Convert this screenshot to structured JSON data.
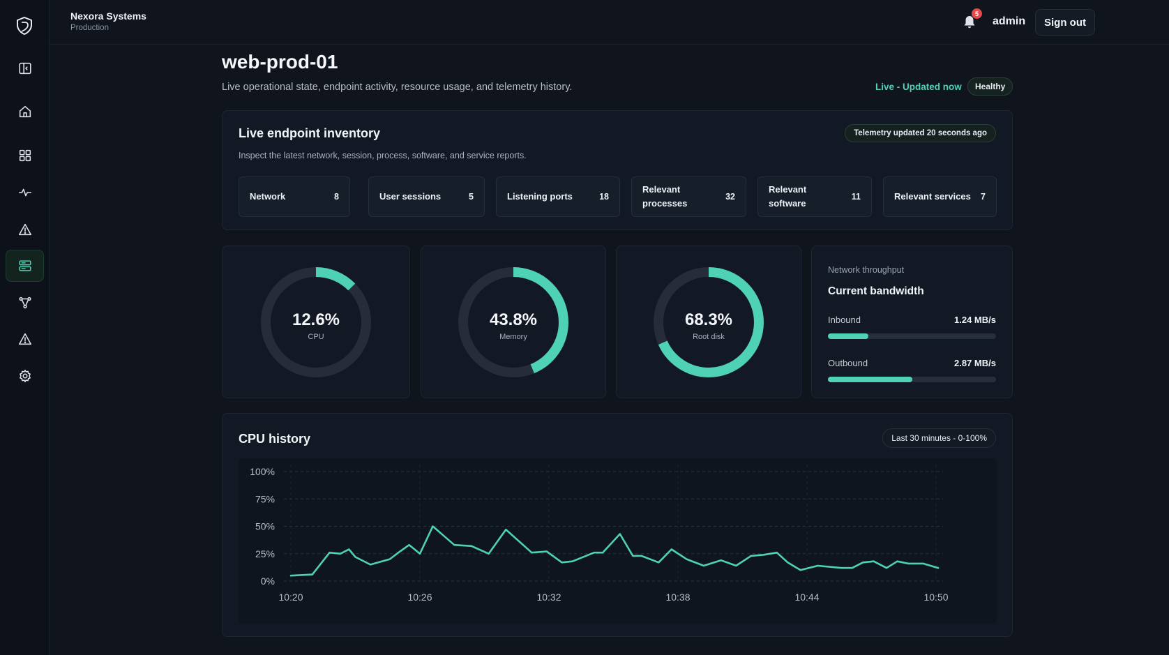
{
  "org": {
    "name": "Nexora Systems",
    "env": "Production"
  },
  "topbar": {
    "notification_count": "5",
    "user": "admin",
    "signout_label": "Sign out"
  },
  "sidebar": {
    "items": [
      {
        "icon": "panel-toggle-icon"
      },
      {
        "icon": "home-icon"
      },
      {
        "icon": "grid-icon"
      },
      {
        "icon": "activity-icon"
      },
      {
        "icon": "alert-icon"
      },
      {
        "icon": "server-icon",
        "active": true
      },
      {
        "icon": "topology-icon"
      },
      {
        "icon": "warning-icon"
      },
      {
        "icon": "gear-icon"
      }
    ]
  },
  "header": {
    "title": "web-prod-01",
    "subtitle": "Live operational state, endpoint activity, resource usage, and telemetry history.",
    "live": "Live - Updated now",
    "status": "Healthy"
  },
  "inventory": {
    "title": "Live endpoint inventory",
    "subtitle": "Inspect the latest network, session, process, software, and service reports.",
    "telemetry": "Telemetry updated 20 seconds ago",
    "items": [
      {
        "label": "Network",
        "count": "8"
      },
      {
        "label": "User sessions",
        "count": "5"
      },
      {
        "label": "Listening ports",
        "count": "18"
      },
      {
        "label": "Relevant processes",
        "count": "32"
      },
      {
        "label": "Relevant software",
        "count": "11"
      },
      {
        "label": "Relevant services",
        "count": "7"
      }
    ]
  },
  "gauges": [
    {
      "value": "12.6%",
      "label": "CPU",
      "fraction": 0.126
    },
    {
      "value": "43.8%",
      "label": "Memory",
      "fraction": 0.438
    },
    {
      "value": "68.3%",
      "label": "Root disk",
      "fraction": 0.683
    }
  ],
  "network": {
    "small_label": "Network throughput",
    "title": "Current bandwidth",
    "inbound": {
      "label": "Inbound",
      "value": "1.24 MB/s",
      "fraction": 0.24
    },
    "outbound": {
      "label": "Outbound",
      "value": "2.87 MB/s",
      "fraction": 0.5
    }
  },
  "history": {
    "title": "CPU history",
    "range": "Last 30 minutes - 0-100%"
  },
  "colors": {
    "accent": "#4fd1b5",
    "background": "#0f141d",
    "card": "#121924",
    "badge": "#e5484d"
  },
  "chart_data": {
    "type": "line",
    "ylim": [
      0,
      100
    ],
    "y_ticks": [
      "0%",
      "25%",
      "50%",
      "75%",
      "100%"
    ],
    "x_ticks": [
      "10:20",
      "10:26",
      "10:32",
      "10:38",
      "10:44",
      "10:50"
    ],
    "x_tick_minutes": [
      0,
      6,
      12,
      18,
      24,
      30
    ],
    "grid": true,
    "series": [
      {
        "x": [
          0,
          1,
          1.8,
          2.3,
          2.7,
          3,
          3.7,
          4.6,
          5,
          5.5,
          6,
          6.6,
          7.6,
          8.4,
          9.2,
          10,
          11.2,
          11.9,
          12.6,
          13.1,
          14.1,
          14.5,
          15.3,
          15.9,
          16.3,
          17.1,
          17.7,
          18.4,
          19.2,
          20.0,
          20.7,
          21.4,
          22.0,
          22.6,
          23.1,
          23.7,
          24.5,
          25.6,
          26.1,
          26.6,
          27.1,
          27.7,
          28.2,
          28.7,
          29.4,
          30.1
        ],
        "values": [
          5,
          6,
          26,
          25,
          29,
          22,
          15,
          20,
          26,
          33,
          25,
          50,
          33,
          32,
          25,
          47,
          26,
          27,
          17,
          18,
          26,
          26,
          43,
          23,
          23,
          17,
          29,
          20,
          14,
          19,
          14,
          23,
          24,
          26,
          17,
          10,
          14,
          12,
          12,
          17,
          18,
          12,
          18,
          16,
          16,
          12
        ]
      }
    ]
  }
}
